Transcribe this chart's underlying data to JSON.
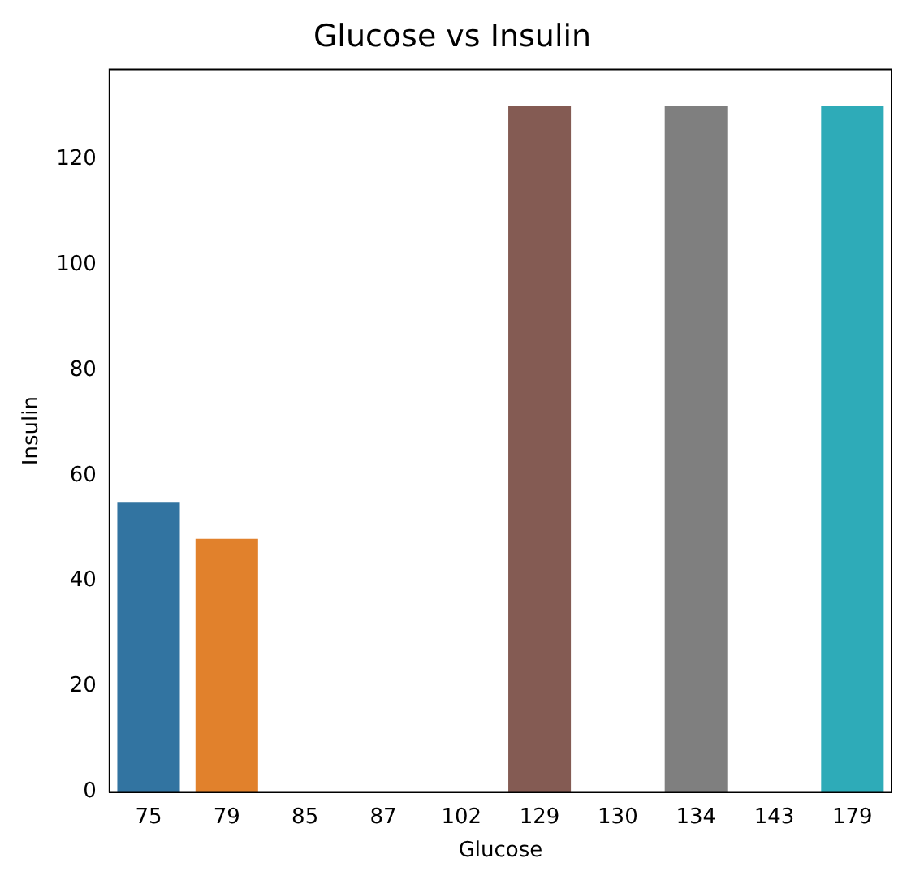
{
  "chart_data": {
    "type": "bar",
    "title": "Glucose vs Insulin",
    "xlabel": "Glucose",
    "ylabel": "Insulin",
    "categories": [
      "75",
      "79",
      "85",
      "87",
      "102",
      "129",
      "130",
      "134",
      "143",
      "179"
    ],
    "values": [
      55,
      48,
      0,
      0,
      0,
      130,
      0,
      130,
      0,
      130
    ],
    "colors": [
      "#3274a1",
      "#e1812c",
      "#3a923a",
      "#c03d3e",
      "#9372b2",
      "#845b53",
      "#d684bd",
      "#7f7f7f",
      "#a9aa35",
      "#2eabb8"
    ],
    "ylim": [
      0,
      137
    ],
    "yticks": [
      0,
      20,
      40,
      60,
      80,
      100,
      120
    ],
    "grid": false,
    "legend": false
  }
}
